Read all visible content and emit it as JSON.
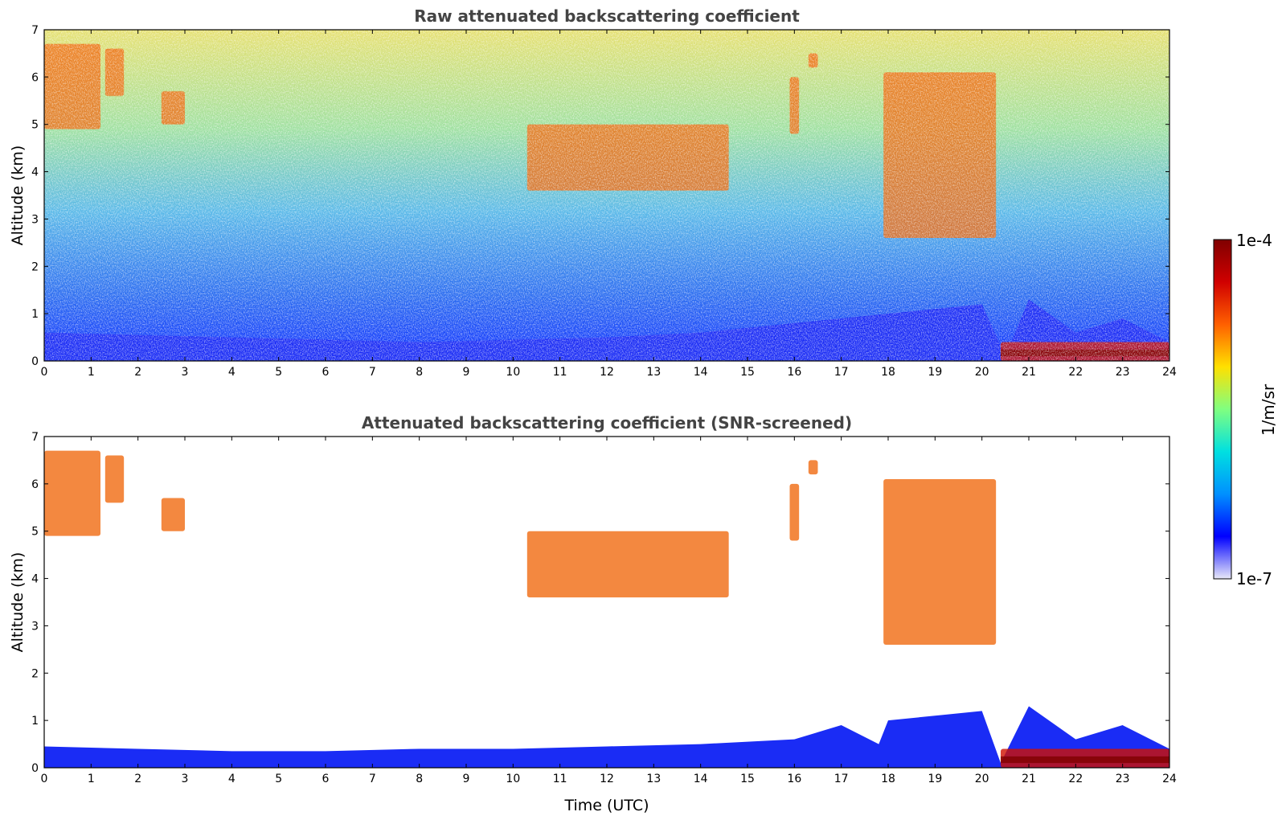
{
  "chart_data": [
    {
      "type": "heatmap",
      "title": "Raw attenuated backscattering coefficient",
      "xlabel": "",
      "ylabel": "Altitude (km)",
      "xlim": [
        0,
        24
      ],
      "ylim": [
        0,
        7
      ],
      "x_ticks": [
        "0",
        "1",
        "2",
        "3",
        "4",
        "5",
        "6",
        "7",
        "8",
        "9",
        "10",
        "11",
        "12",
        "13",
        "14",
        "15",
        "16",
        "17",
        "18",
        "19",
        "20",
        "21",
        "22",
        "23",
        "24"
      ],
      "y_ticks": [
        "0",
        "1",
        "2",
        "3",
        "4",
        "5",
        "6",
        "7"
      ],
      "x": [
        0,
        2,
        4,
        6,
        8,
        10,
        12,
        14,
        16,
        18,
        19,
        20,
        20.5,
        21,
        22,
        23,
        24
      ],
      "boundary_layer_top_km": [
        0.6,
        0.55,
        0.5,
        0.45,
        0.4,
        0.45,
        0.5,
        0.6,
        0.8,
        1.0,
        1.1,
        1.2,
        0.1,
        1.3,
        0.6,
        0.9,
        0.4
      ],
      "cloud_features": [
        {
          "time_range": [
            0,
            1.2
          ],
          "altitude_km": [
            4.9,
            6.7
          ],
          "level": "high"
        },
        {
          "time_range": [
            1.3,
            1.7
          ],
          "altitude_km": [
            5.6,
            6.6
          ],
          "level": "high"
        },
        {
          "time_range": [
            2.5,
            3.0
          ],
          "altitude_km": [
            5.0,
            5.7
          ],
          "level": "high"
        },
        {
          "time_range": [
            10.3,
            14.6
          ],
          "altitude_km": [
            3.6,
            5.0
          ],
          "level": "high"
        },
        {
          "time_range": [
            15.9,
            16.1
          ],
          "altitude_km": [
            4.8,
            6.0
          ],
          "level": "high"
        },
        {
          "time_range": [
            16.3,
            16.5
          ],
          "altitude_km": [
            6.2,
            6.5
          ],
          "level": "high"
        },
        {
          "time_range": [
            17.9,
            20.3
          ],
          "altitude_km": [
            2.6,
            6.1
          ],
          "level": "high"
        },
        {
          "time_range": [
            20.4,
            24.0
          ],
          "altitude_km": [
            0.0,
            0.4
          ],
          "level": "very high"
        }
      ]
    },
    {
      "type": "heatmap",
      "title": "Attenuated backscattering coefficient (SNR-screened)",
      "xlabel": "Time (UTC)",
      "ylabel": "Altitude (km)",
      "xlim": [
        0,
        24
      ],
      "ylim": [
        0,
        7
      ],
      "x_ticks": [
        "0",
        "1",
        "2",
        "3",
        "4",
        "5",
        "6",
        "7",
        "8",
        "9",
        "10",
        "11",
        "12",
        "13",
        "14",
        "15",
        "16",
        "17",
        "18",
        "19",
        "20",
        "21",
        "22",
        "23",
        "24"
      ],
      "y_ticks": [
        "0",
        "1",
        "2",
        "3",
        "4",
        "5",
        "6",
        "7"
      ],
      "x": [
        0,
        2,
        4,
        6,
        8,
        10,
        12,
        14,
        16,
        17,
        17.8,
        18,
        20,
        20.4,
        21,
        22,
        23,
        24
      ],
      "boundary_layer_top_km": [
        0.45,
        0.4,
        0.35,
        0.35,
        0.4,
        0.4,
        0.45,
        0.5,
        0.6,
        0.9,
        0.5,
        1.0,
        1.2,
        0.1,
        1.3,
        0.6,
        0.9,
        0.4
      ]
    }
  ],
  "colorbar": {
    "label": "1/m/sr",
    "max_label": "1e-4",
    "min_label": "1e-7",
    "colors": [
      "#e8e8f8",
      "#0000ff",
      "#0090ff",
      "#00e0e0",
      "#80ff80",
      "#ffe000",
      "#ff6000",
      "#d00000",
      "#800000"
    ]
  }
}
